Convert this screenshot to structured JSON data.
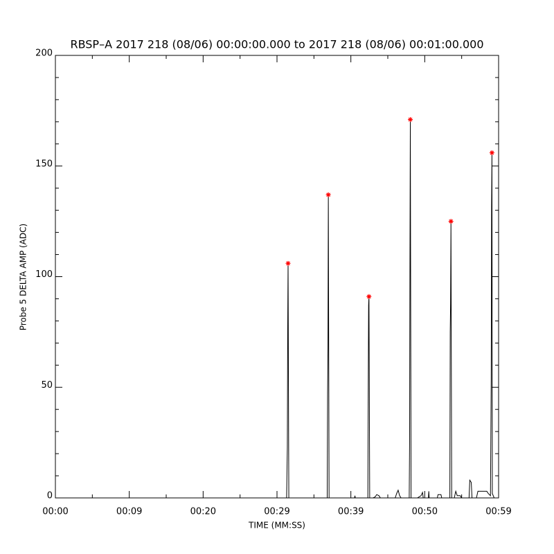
{
  "chart_data": {
    "type": "line",
    "title": "RBSP–A 2017 218 (08/06) 00:00:00.000 to 2017 218 (08/06) 00:01:00.000",
    "xlabel": "TIME (MM:SS)",
    "ylabel": "Probe 5 DELTA AMP (ADC)",
    "xlim": [
      0,
      60
    ],
    "ylim": [
      0,
      200
    ],
    "xticks": [
      {
        "value": 0,
        "label": "00:00"
      },
      {
        "value": 10,
        "label": "00:09"
      },
      {
        "value": 20,
        "label": "00:20"
      },
      {
        "value": 30,
        "label": "00:29"
      },
      {
        "value": 40,
        "label": "00:39"
      },
      {
        "value": 50,
        "label": "00:50"
      },
      {
        "value": 60,
        "label": "00:59"
      }
    ],
    "xminorticks": [
      5,
      15,
      25,
      35,
      45,
      55
    ],
    "yticks": [
      0,
      50,
      100,
      150,
      200
    ],
    "yminorticks": [
      10,
      20,
      30,
      40,
      60,
      70,
      80,
      90,
      110,
      120,
      130,
      140,
      160,
      170,
      180,
      190
    ],
    "series": [
      {
        "color": "#000000",
        "x": [
          0,
          31.3,
          31.4,
          31.45,
          31.5,
          31.6,
          36.8,
          36.85,
          36.9,
          36.95,
          37.05,
          40.5,
          40.55,
          40.6,
          42.3,
          42.35,
          42.4,
          42.45,
          42.55,
          43.0,
          43.3,
          43.5,
          43.8,
          44.0,
          46.0,
          46.2,
          46.4,
          46.6,
          46.8,
          47.9,
          47.95,
          48.0,
          48.05,
          48.15,
          49.0,
          49.5,
          49.7,
          49.8,
          50.5,
          50.55,
          50.6,
          51.7,
          51.8,
          52.2,
          52.3,
          53.4,
          53.45,
          53.5,
          53.55,
          53.65,
          54.0,
          54.2,
          54.4,
          54.8,
          55.0,
          56.0,
          56.1,
          56.3,
          56.4,
          57.0,
          57.2,
          57.6,
          58.4,
          58.6,
          58.9,
          59.0,
          59.05,
          59.1,
          59.15,
          59.4,
          60
        ],
        "values": [
          0,
          0,
          23,
          76,
          106,
          0,
          0,
          47,
          68,
          137,
          0,
          0,
          1,
          0,
          0,
          45,
          87,
          91,
          0,
          0,
          0.5,
          1.5,
          1,
          0,
          0,
          2,
          3.5,
          1,
          0,
          0,
          25,
          109,
          171,
          0,
          0,
          1,
          2.5,
          0,
          0,
          3,
          0,
          0,
          1.5,
          1.5,
          0,
          0,
          75,
          88,
          125,
          0,
          0,
          3,
          1,
          1,
          0,
          0,
          8,
          7,
          0,
          0,
          3,
          3,
          3,
          2,
          1,
          54,
          132,
          156,
          2,
          0,
          0
        ]
      },
      {
        "color": "#ff0000",
        "marker": "asterisk",
        "x": [
          31.5,
          36.95,
          42.45,
          48.05,
          53.55,
          59.1
        ],
        "values": [
          106,
          137,
          91,
          171,
          125,
          156
        ]
      }
    ]
  }
}
